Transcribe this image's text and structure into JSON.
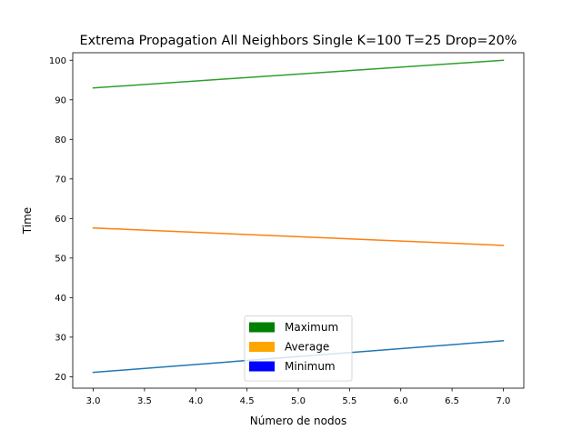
{
  "chart_data": {
    "type": "line",
    "title": "Extrema Propagation All Neighbors Single K=100 T=25 Drop=20%",
    "xlabel": "Número de nodos",
    "ylabel": "Time",
    "xlim": [
      2.8,
      7.2
    ],
    "ylim": [
      17.1,
      101.9
    ],
    "xticks": [
      3.0,
      3.5,
      4.0,
      4.5,
      5.0,
      5.5,
      6.0,
      6.5,
      7.0
    ],
    "xtick_labels": [
      "3.0",
      "3.5",
      "4.0",
      "4.5",
      "5.0",
      "5.5",
      "6.0",
      "6.5",
      "7.0"
    ],
    "yticks": [
      20,
      30,
      40,
      50,
      60,
      70,
      80,
      90,
      100
    ],
    "ytick_labels": [
      "20",
      "30",
      "40",
      "50",
      "60",
      "70",
      "80",
      "90",
      "100"
    ],
    "grid": false,
    "legend_position": "lower center",
    "series": [
      {
        "x": [
          3,
          7
        ],
        "values": [
          93.0,
          100.0
        ],
        "color": "#2ca02c"
      },
      {
        "x": [
          3,
          7
        ],
        "values": [
          57.6,
          53.2
        ],
        "color": "#ff7f0e"
      },
      {
        "x": [
          3,
          7
        ],
        "values": [
          21.1,
          29.1
        ],
        "color": "#1f77b4"
      }
    ],
    "legend": [
      {
        "label": "Maximum",
        "color": "#008000"
      },
      {
        "label": "Average",
        "color": "#ffa500"
      },
      {
        "label": "Minimum",
        "color": "#0000ff"
      }
    ]
  }
}
